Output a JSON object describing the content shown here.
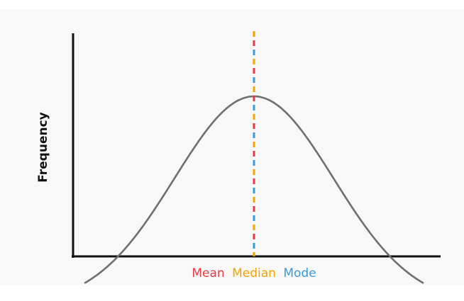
{
  "diagram": {
    "ylabel": "Frequency",
    "labels": {
      "mean": "Mean",
      "median": "Median",
      "mode": "Mode"
    },
    "colors": {
      "mean": "#e63946",
      "median": "#f4a300",
      "mode": "#3a9ad9",
      "curve": "#6f6f6f",
      "axis": "#111111"
    }
  }
}
